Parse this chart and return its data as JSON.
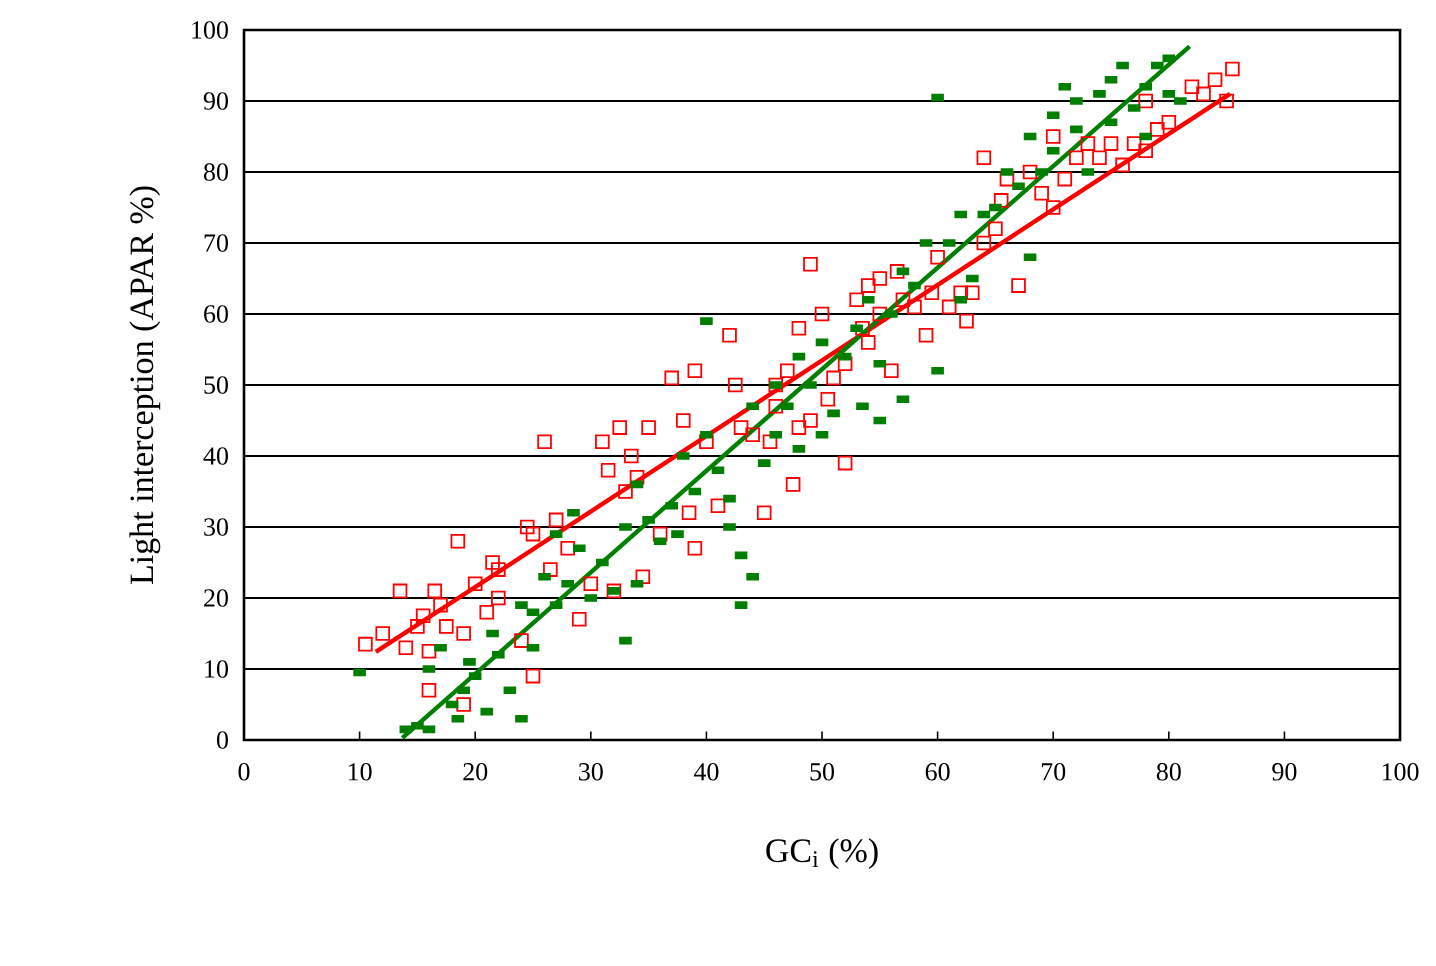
{
  "chart_data": {
    "type": "scatter",
    "xlabel": "GC$_{i}$ (%)",
    "ylabel": "Light interception (APAR %)",
    "xlim": [
      0,
      100
    ],
    "ylim": [
      0,
      100
    ],
    "xticks": [
      0,
      10,
      20,
      30,
      40,
      50,
      60,
      70,
      80,
      90,
      100
    ],
    "yticks": [
      0,
      10,
      20,
      30,
      40,
      50,
      60,
      70,
      80,
      90,
      100
    ],
    "grid": "y",
    "series": [
      {
        "color": "#ff0000",
        "marker": "square",
        "x": [
          10.5,
          12,
          13.5,
          14,
          15,
          15.5,
          16,
          16,
          16.5,
          17,
          17.5,
          18.5,
          19,
          19,
          20,
          21,
          21.5,
          22,
          22,
          24,
          24.5,
          25,
          25,
          26,
          26.5,
          27,
          28,
          29,
          30,
          31,
          31.5,
          32,
          32.5,
          33,
          33.5,
          34,
          34.5,
          35,
          36,
          37,
          38,
          38.5,
          39,
          39,
          40,
          41,
          42,
          42.5,
          43,
          44,
          45,
          45.5,
          46,
          46,
          47,
          47.5,
          48,
          48,
          49,
          49,
          50,
          50.5,
          51,
          52,
          52,
          53,
          53.5,
          54,
          54,
          55,
          55,
          56,
          56.5,
          57,
          58,
          59,
          59.5,
          60,
          61,
          62,
          62.5,
          63,
          64,
          64,
          65,
          65.5,
          66,
          67,
          68,
          69,
          70,
          70,
          71,
          72,
          73,
          74,
          75,
          76,
          77,
          78,
          78,
          79,
          80,
          82,
          83,
          84,
          85,
          85.5
        ],
        "values": [
          13.5,
          15,
          21,
          13,
          16,
          17.5,
          7,
          12.5,
          21,
          19,
          16,
          28,
          5,
          15,
          22,
          18,
          25,
          20,
          24,
          14,
          30,
          9,
          29,
          42,
          24,
          31,
          27,
          17,
          22,
          42,
          38,
          21,
          44,
          35,
          40,
          37,
          23,
          44,
          29,
          51,
          45,
          32,
          27,
          52,
          42,
          33,
          57,
          50,
          44,
          43,
          32,
          42,
          47,
          50,
          52,
          36,
          44,
          58,
          45,
          67,
          60,
          48,
          51,
          53,
          39,
          62,
          58,
          56,
          64,
          65,
          60,
          52,
          66,
          62,
          61,
          57,
          63,
          68,
          61,
          63,
          59,
          63,
          82,
          70,
          72,
          76,
          79,
          64,
          80,
          77,
          85,
          75,
          79,
          82,
          84,
          82,
          84,
          81,
          84,
          90,
          83,
          86,
          87,
          92,
          91,
          93,
          90,
          94.5
        ]
      },
      {
        "color": "#007f00",
        "marker": "square",
        "x": [
          10,
          14,
          15,
          16,
          16,
          17,
          18,
          18.5,
          19,
          19.5,
          20,
          21,
          21.5,
          22,
          23,
          24,
          24,
          25,
          25,
          26,
          27,
          27,
          28,
          28.5,
          29,
          30,
          31,
          32,
          33,
          33,
          34,
          34,
          35,
          36,
          37,
          37.5,
          38,
          39,
          40,
          40,
          41,
          42,
          42,
          43,
          43,
          44,
          44,
          45,
          46,
          46,
          47,
          48,
          48,
          49,
          50,
          50,
          51,
          52,
          53,
          53.5,
          54,
          55,
          55,
          56,
          57,
          57,
          58,
          59,
          60,
          60,
          61,
          62,
          62,
          63,
          64,
          65,
          66,
          67,
          68,
          68,
          69,
          70,
          70,
          71,
          72,
          72,
          73,
          74,
          75,
          75,
          76,
          77,
          78,
          78,
          79,
          80,
          80,
          81
        ],
        "values": [
          9.5,
          1.5,
          2,
          1.5,
          10,
          13,
          5,
          3,
          7,
          11,
          9,
          4,
          15,
          12,
          7,
          3,
          19,
          18,
          13,
          23,
          29,
          19,
          22,
          32,
          27,
          20,
          25,
          21,
          14,
          30,
          22,
          36,
          31,
          28,
          33,
          29,
          40,
          35,
          59,
          43,
          38,
          30,
          34,
          19,
          26,
          47,
          23,
          39,
          50,
          43,
          47,
          41,
          54,
          50,
          43,
          56,
          46,
          54,
          58,
          47,
          62,
          53,
          45,
          60,
          66,
          48,
          64,
          70,
          52,
          90.5,
          70,
          74,
          62,
          65,
          74,
          75,
          80,
          78,
          68,
          85,
          80,
          83,
          88,
          92,
          86,
          90,
          80,
          91,
          87,
          93,
          95,
          89,
          92,
          85,
          95,
          91,
          96,
          90
        ]
      },
      {
        "type": "line",
        "color": "#ff0000",
        "x": [
          11.4,
          85.3
        ],
        "values": [
          12.4,
          91
        ]
      },
      {
        "type": "line",
        "color": "#008000",
        "x": [
          13.7,
          81.8
        ],
        "values": [
          0.3,
          97.7
        ]
      }
    ]
  }
}
